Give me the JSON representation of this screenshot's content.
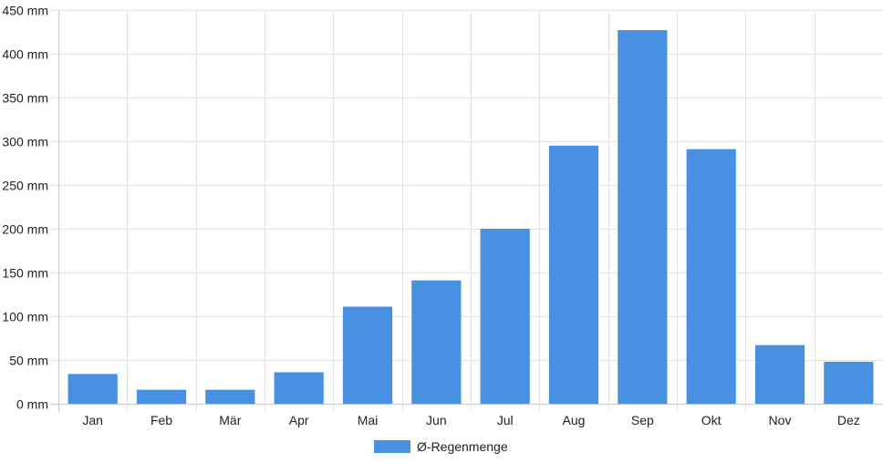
{
  "chart_data": {
    "type": "bar",
    "categories": [
      "Jan",
      "Feb",
      "Mär",
      "Apr",
      "Mai",
      "Jun",
      "Jul",
      "Aug",
      "Sep",
      "Okt",
      "Nov",
      "Dez"
    ],
    "series": [
      {
        "name": "Ø-Regenmenge",
        "values": [
          34,
          16,
          16,
          36,
          111,
          141,
          200,
          295,
          427,
          291,
          67,
          48
        ]
      }
    ],
    "ylim": [
      0,
      450
    ],
    "yticks": [
      0,
      50,
      100,
      150,
      200,
      250,
      300,
      350,
      400,
      450
    ],
    "y_unit": "mm",
    "grid": true,
    "legend_position": "bottom",
    "colors": {
      "bar": "#4a90e2",
      "grid": "#e3e3e3",
      "axis": "#c8c8c8"
    }
  }
}
